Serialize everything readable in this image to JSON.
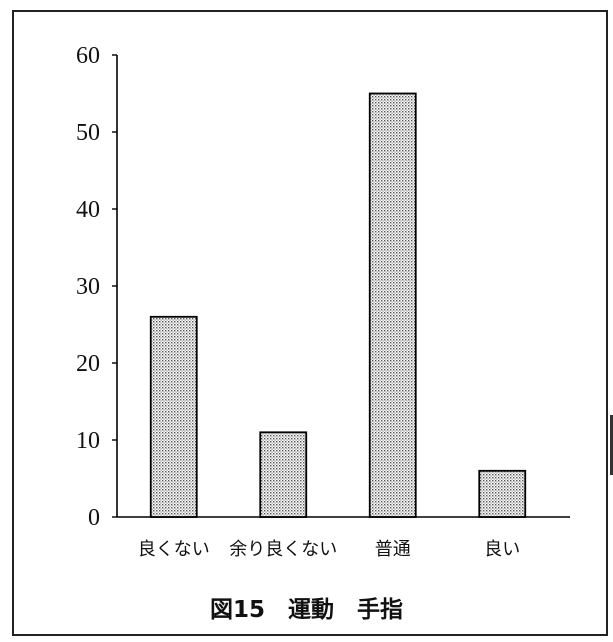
{
  "chart_data": {
    "type": "bar",
    "title": "",
    "xlabel": "",
    "ylabel": "",
    "categories": [
      "良くない",
      "余り良くない",
      "普通",
      "良い"
    ],
    "values": [
      26,
      11,
      55,
      6
    ],
    "ylim": [
      0,
      60
    ],
    "yticks": [
      0,
      10,
      20,
      30,
      40,
      50,
      60
    ],
    "grid": false,
    "bar_fill": "stippled light gray",
    "colors": {
      "bar": "#c8c8c8",
      "outline": "#000000",
      "axis": "#000000"
    }
  },
  "figure": {
    "caption": "図15　運動　手指"
  }
}
